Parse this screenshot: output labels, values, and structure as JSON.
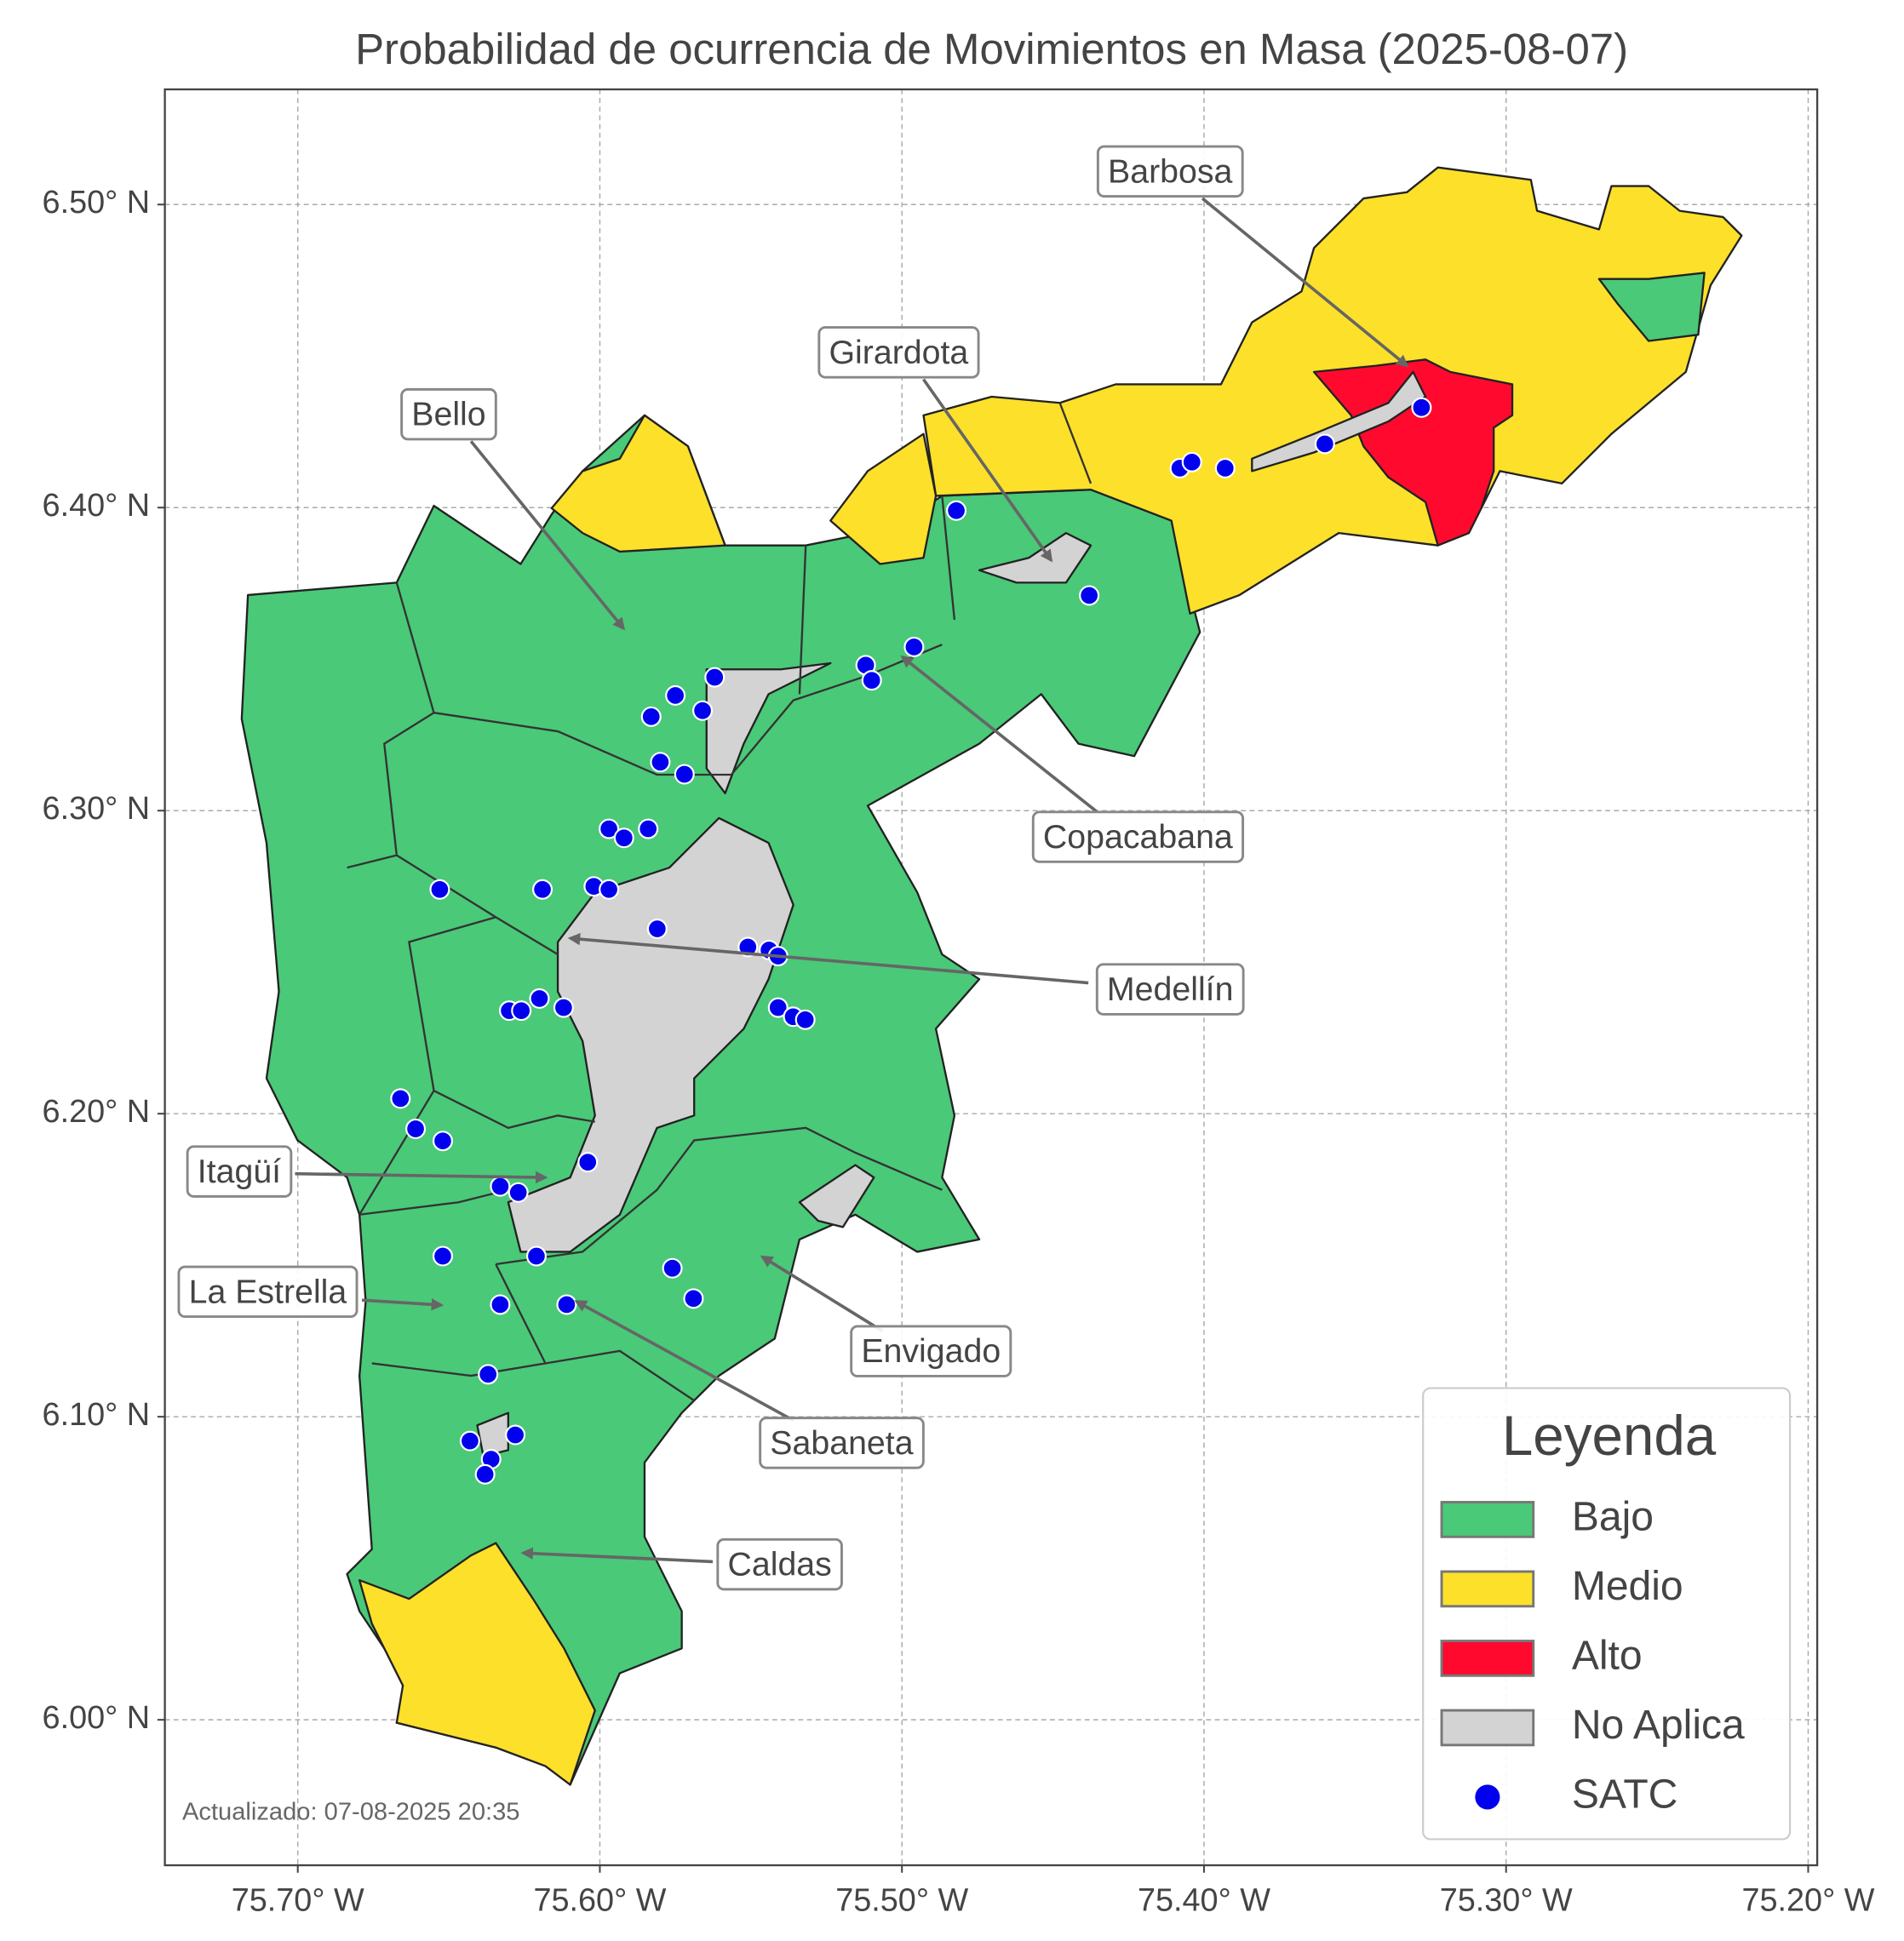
{
  "map": {
    "title": "Probabilidad de ocurrencia de Movimientos en Masa (2025-08-07)",
    "xlim": [
      -75.744,
      -75.197
    ],
    "ylim": [
      5.952,
      6.538
    ],
    "xticks": [
      {
        "value": -75.7,
        "label": "75.70° W"
      },
      {
        "value": -75.6,
        "label": "75.60° W"
      },
      {
        "value": -75.5,
        "label": "75.50° W"
      },
      {
        "value": -75.4,
        "label": "75.40° W"
      },
      {
        "value": -75.3,
        "label": "75.30° W"
      },
      {
        "value": -75.2,
        "label": "75.20° W"
      }
    ],
    "yticks": [
      {
        "value": 6.0,
        "label": "6.00° N"
      },
      {
        "value": 6.1,
        "label": "6.10° N"
      },
      {
        "value": 6.2,
        "label": "6.20° N"
      },
      {
        "value": 6.3,
        "label": "6.30° N"
      },
      {
        "value": 6.4,
        "label": "6.40° N"
      },
      {
        "value": 6.5,
        "label": "6.50° N"
      }
    ],
    "grid": true,
    "annotations": [
      "Barbosa",
      "Girardota",
      "Bello",
      "Copacabana",
      "Medellín",
      "Itagüí",
      "La Estrella",
      "Envigado",
      "Sabaneta",
      "Caldas"
    ],
    "legend": {
      "title": "Leyenda",
      "corner": "lower right",
      "items": [
        {
          "label": "Bajo",
          "color": "#4ac978"
        },
        {
          "label": "Medio",
          "color": "#fde02a"
        },
        {
          "label": "Alto",
          "color": "#ff0a2e"
        },
        {
          "label": "No Aplica",
          "color": "#d3d3d3"
        },
        {
          "label": "SATC",
          "color": "#0000ee"
        }
      ]
    },
    "satc": {
      "lon": [
        -75.328,
        -75.36,
        -75.408,
        -75.404,
        -75.393,
        -75.482,
        -75.438,
        -75.496,
        -75.512,
        -75.51,
        -75.562,
        -75.575,
        -75.583,
        -75.566,
        -75.58,
        -75.572,
        -75.597,
        -75.592,
        -75.584,
        -75.653,
        -75.619,
        -75.602,
        -75.597,
        -75.581,
        -75.551,
        -75.544,
        -75.541,
        -75.541,
        -75.536,
        -75.532,
        -75.63,
        -75.626,
        -75.62,
        -75.612,
        -75.666,
        -75.661,
        -75.652,
        -75.604,
        -75.633,
        -75.627,
        -75.652,
        -75.621,
        -75.576,
        -75.569,
        -75.633,
        -75.611,
        -75.637,
        -75.643,
        -75.628,
        -75.636,
        -75.638
      ],
      "lat": [
        6.433,
        6.421,
        6.413,
        6.415,
        6.413,
        6.399,
        6.371,
        6.354,
        6.348,
        6.343,
        6.344,
        6.338,
        6.331,
        6.333,
        6.316,
        6.312,
        6.294,
        6.291,
        6.294,
        6.274,
        6.274,
        6.275,
        6.274,
        6.261,
        6.255,
        6.254,
        6.252,
        6.235,
        6.232,
        6.231,
        6.234,
        6.234,
        6.238,
        6.235,
        6.205,
        6.195,
        6.191,
        6.184,
        6.176,
        6.174,
        6.153,
        6.153,
        6.149,
        6.139,
        6.137,
        6.137,
        6.114,
        6.092,
        6.094,
        6.086,
        6.081
      ]
    },
    "footnote": "Actualizado: 07-08-2025 20:35"
  }
}
